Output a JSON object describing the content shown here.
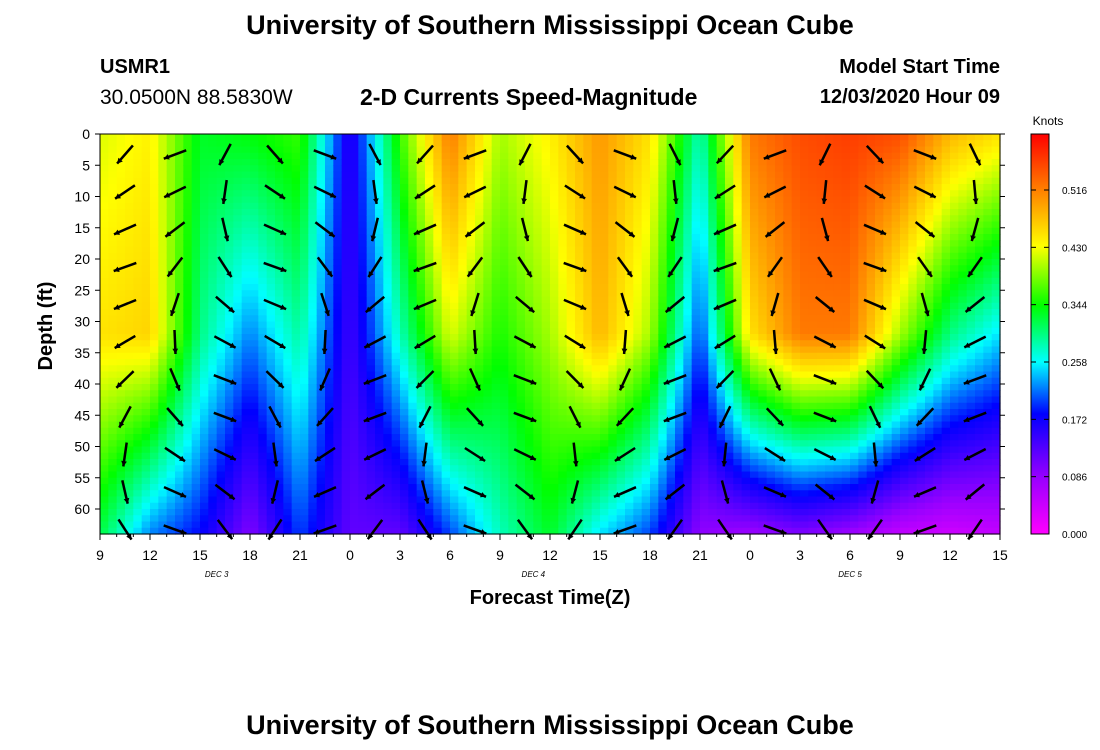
{
  "header": {
    "title": "University of Southern Mississippi Ocean Cube",
    "station": "USMR1",
    "coords": "30.0500N 88.5830W",
    "subtitle": "2-D Currents Speed-Magnitude",
    "model_start_label": "Model Start Time",
    "model_start_value": "12/03/2020 Hour 09"
  },
  "footer": {
    "title": "University of Southern Mississippi Ocean Cube"
  },
  "chart_data": {
    "type": "heatmap",
    "xlabel": "Forecast Time(Z)",
    "ylabel": "Depth (ft)",
    "x_tick_labels": [
      "9",
      "12",
      "15",
      "18",
      "21",
      "0",
      "3",
      "6",
      "9",
      "12",
      "15",
      "18",
      "21",
      "0",
      "3",
      "6",
      "9",
      "12",
      "15"
    ],
    "x_date_labels": [
      {
        "label": "DEC 3",
        "hour_index": 7
      },
      {
        "label": "DEC 4",
        "hour_index": 26
      },
      {
        "label": "DEC 5",
        "hour_index": 45
      }
    ],
    "y_tick_labels": [
      "0",
      "5",
      "10",
      "15",
      "20",
      "25",
      "30",
      "35",
      "40",
      "45",
      "50",
      "55",
      "60"
    ],
    "ylim": [
      0,
      64
    ],
    "forecast_hours": [
      0,
      54
    ],
    "colorbar": {
      "label": "Knots",
      "tick_labels": [
        "0.000",
        "0.086",
        "0.172",
        "0.258",
        "0.344",
        "0.430",
        "0.516"
      ],
      "range": [
        0,
        0.6
      ]
    },
    "speed_profile": [
      [
        0,
        0.42,
        0.45,
        0.32
      ],
      [
        3,
        0.44,
        0.46,
        0.22
      ],
      [
        6,
        0.33,
        0.3,
        0.18
      ],
      [
        9,
        0.34,
        0.22,
        0.1
      ],
      [
        12,
        0.36,
        0.29,
        0.2
      ],
      [
        15,
        0.15,
        0.14,
        0.12
      ],
      [
        18,
        0.36,
        0.28,
        0.12
      ],
      [
        21,
        0.52,
        0.42,
        0.2
      ],
      [
        24,
        0.4,
        0.35,
        0.28
      ],
      [
        27,
        0.44,
        0.4,
        0.33
      ],
      [
        30,
        0.5,
        0.48,
        0.25
      ],
      [
        33,
        0.45,
        0.4,
        0.2
      ],
      [
        36,
        0.28,
        0.2,
        0.09
      ],
      [
        39,
        0.52,
        0.45,
        0.08
      ],
      [
        42,
        0.55,
        0.52,
        0.1
      ],
      [
        45,
        0.56,
        0.52,
        0.08
      ],
      [
        48,
        0.55,
        0.4,
        0.05
      ],
      [
        51,
        0.48,
        0.3,
        0.04
      ],
      [
        54,
        0.45,
        0.25,
        0.05
      ]
    ]
  }
}
